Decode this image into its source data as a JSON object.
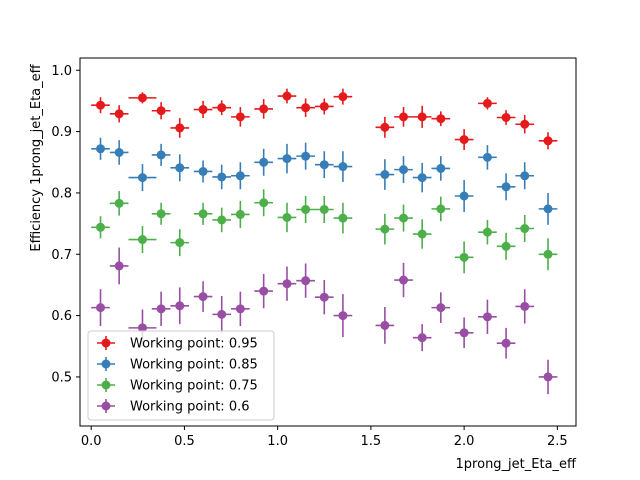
{
  "chart_data": {
    "type": "scatter",
    "title": "",
    "xlabel": "1prong_jet_Eta_eff",
    "ylabel": "Efficiency 1prong_jet_Eta_eff",
    "xlim": [
      -0.06,
      2.6
    ],
    "ylim": [
      0.42,
      1.02
    ],
    "x_ticks": [
      0.0,
      0.5,
      1.0,
      1.5,
      2.0,
      2.5
    ],
    "x_tick_labels": [
      "0.0",
      "0.5",
      "1.0",
      "1.5",
      "2.0",
      "2.5"
    ],
    "y_ticks": [
      0.5,
      0.6,
      0.7,
      0.8,
      0.9,
      1.0
    ],
    "y_tick_labels": [
      "0.5",
      "0.6",
      "0.7",
      "0.8",
      "0.9",
      "1.0"
    ],
    "grid": false,
    "legend_position": "lower-left",
    "x": [
      0.05,
      0.15,
      0.275,
      0.375,
      0.475,
      0.6,
      0.7,
      0.8,
      0.925,
      1.05,
      1.15,
      1.25,
      1.35,
      1.575,
      1.675,
      1.775,
      1.875,
      2.0,
      2.125,
      2.225,
      2.325,
      2.45
    ],
    "x_err": [
      0.05,
      0.05,
      0.075,
      0.05,
      0.05,
      0.05,
      0.05,
      0.05,
      0.05,
      0.05,
      0.05,
      0.05,
      0.05,
      0.05,
      0.05,
      0.05,
      0.05,
      0.05,
      0.05,
      0.05,
      0.05,
      0.05
    ],
    "series": [
      {
        "name": "Working point: 0.95",
        "color": "#e41a1c",
        "values": [
          0.943,
          0.929,
          0.955,
          0.934,
          0.906,
          0.936,
          0.939,
          0.924,
          0.937,
          0.958,
          0.939,
          0.941,
          0.957,
          0.907,
          0.924,
          0.924,
          0.921,
          0.887,
          0.946,
          0.923,
          0.912,
          0.885
        ],
        "y_err": [
          0.013,
          0.014,
          0.009,
          0.014,
          0.016,
          0.014,
          0.012,
          0.016,
          0.016,
          0.012,
          0.015,
          0.013,
          0.013,
          0.017,
          0.016,
          0.018,
          0.012,
          0.017,
          0.01,
          0.012,
          0.015,
          0.014
        ]
      },
      {
        "name": "Working point: 0.85",
        "color": "#377eb8",
        "values": [
          0.872,
          0.866,
          0.825,
          0.862,
          0.841,
          0.835,
          0.826,
          0.828,
          0.85,
          0.856,
          0.86,
          0.846,
          0.843,
          0.83,
          0.838,
          0.825,
          0.84,
          0.795,
          0.858,
          0.81,
          0.828,
          0.774
        ]
      },
      {
        "name": "Working point: 0.75",
        "color": "#4daf4a",
        "values": [
          0.744,
          0.783,
          0.724,
          0.766,
          0.719,
          0.766,
          0.756,
          0.765,
          0.784,
          0.76,
          0.773,
          0.773,
          0.759,
          0.741,
          0.759,
          0.733,
          0.774,
          0.695,
          0.736,
          0.713,
          0.742,
          0.7
        ]
      },
      {
        "name": "Working point: 0.6",
        "color": "#984ea3",
        "values": [
          0.613,
          0.681,
          0.58,
          0.611,
          0.616,
          0.631,
          0.602,
          0.611,
          0.64,
          0.652,
          0.657,
          0.63,
          0.6,
          0.584,
          0.658,
          0.564,
          0.613,
          0.572,
          0.598,
          0.555,
          0.615,
          0.5
        ]
      }
    ],
    "y_err_default": [
      0.018,
      0.02,
      0.022,
      0.018,
      0.022,
      0.018,
      0.02,
      0.022,
      0.022,
      0.024,
      0.022,
      0.022,
      0.025,
      0.025,
      0.022,
      0.024,
      0.02,
      0.026,
      0.02,
      0.022,
      0.022,
      0.026
    ],
    "y_err_wp06": [
      0.03,
      0.03,
      0.03,
      0.028,
      0.03,
      0.025,
      0.03,
      0.028,
      0.028,
      0.028,
      0.028,
      0.028,
      0.035,
      0.03,
      0.028,
      0.022,
      0.025,
      0.025,
      0.028,
      0.025,
      0.028,
      0.028
    ]
  }
}
